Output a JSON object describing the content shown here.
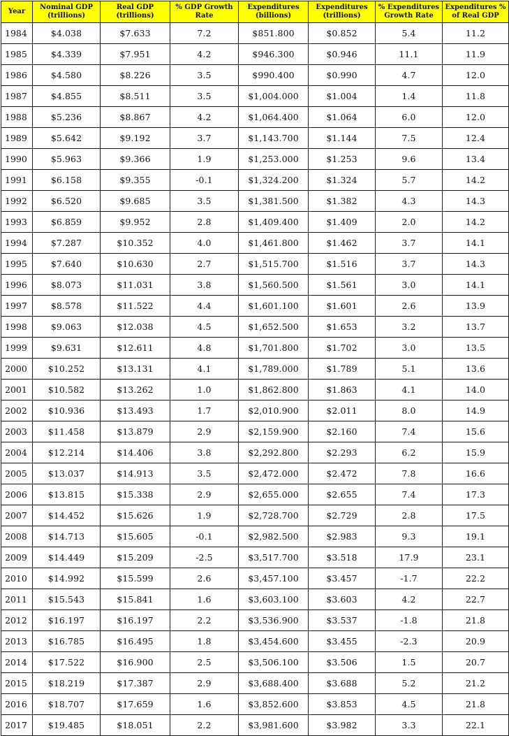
{
  "table": {
    "headers": [
      "Year",
      "Nominal GDP (trillions)",
      "Real GDP (trillions)",
      "% GDP Growth Rate",
      "Expenditures (billions)",
      "Expenditures (trillions)",
      "% Expenditures Growth Rate",
      "Expenditures % of Real GDP"
    ],
    "rows": [
      [
        "1984",
        "$4.038",
        "$7.633",
        "7.2",
        "$851.800",
        "$0.852",
        "5.4",
        "11.2"
      ],
      [
        "1985",
        "$4.339",
        "$7.951",
        "4.2",
        "$946.300",
        "$0.946",
        "11.1",
        "11.9"
      ],
      [
        "1986",
        "$4.580",
        "$8.226",
        "3.5",
        "$990.400",
        "$0.990",
        "4.7",
        "12.0"
      ],
      [
        "1987",
        "$4.855",
        "$8.511",
        "3.5",
        "$1,004.000",
        "$1.004",
        "1.4",
        "11.8"
      ],
      [
        "1988",
        "$5.236",
        "$8.867",
        "4.2",
        "$1,064.400",
        "$1.064",
        "6.0",
        "12.0"
      ],
      [
        "1989",
        "$5.642",
        "$9.192",
        "3.7",
        "$1,143.700",
        "$1.144",
        "7.5",
        "12.4"
      ],
      [
        "1990",
        "$5.963",
        "$9.366",
        "1.9",
        "$1,253.000",
        "$1.253",
        "9.6",
        "13.4"
      ],
      [
        "1991",
        "$6.158",
        "$9.355",
        "-0.1",
        "$1,324.200",
        "$1.324",
        "5.7",
        "14.2"
      ],
      [
        "1992",
        "$6.520",
        "$9.685",
        "3.5",
        "$1,381.500",
        "$1.382",
        "4.3",
        "14.3"
      ],
      [
        "1993",
        "$6.859",
        "$9.952",
        "2.8",
        "$1,409.400",
        "$1.409",
        "2.0",
        "14.2"
      ],
      [
        "1994",
        "$7.287",
        "$10.352",
        "4.0",
        "$1,461.800",
        "$1.462",
        "3.7",
        "14.1"
      ],
      [
        "1995",
        "$7.640",
        "$10.630",
        "2.7",
        "$1,515.700",
        "$1.516",
        "3.7",
        "14.3"
      ],
      [
        "1996",
        "$8.073",
        "$11.031",
        "3.8",
        "$1,560.500",
        "$1.561",
        "3.0",
        "14.1"
      ],
      [
        "1997",
        "$8.578",
        "$11.522",
        "4.4",
        "$1,601.100",
        "$1.601",
        "2.6",
        "13.9"
      ],
      [
        "1998",
        "$9.063",
        "$12.038",
        "4.5",
        "$1,652.500",
        "$1.653",
        "3.2",
        "13.7"
      ],
      [
        "1999",
        "$9.631",
        "$12.611",
        "4.8",
        "$1,701.800",
        "$1.702",
        "3.0",
        "13.5"
      ],
      [
        "2000",
        "$10.252",
        "$13.131",
        "4.1",
        "$1,789.000",
        "$1.789",
        "5.1",
        "13.6"
      ],
      [
        "2001",
        "$10.582",
        "$13.262",
        "1.0",
        "$1,862.800",
        "$1.863",
        "4.1",
        "14.0"
      ],
      [
        "2002",
        "$10.936",
        "$13.493",
        "1.7",
        "$2,010.900",
        "$2.011",
        "8.0",
        "14.9"
      ],
      [
        "2003",
        "$11.458",
        "$13.879",
        "2.9",
        "$2,159.900",
        "$2.160",
        "7.4",
        "15.6"
      ],
      [
        "2004",
        "$12.214",
        "$14.406",
        "3.8",
        "$2,292.800",
        "$2.293",
        "6.2",
        "15.9"
      ],
      [
        "2005",
        "$13.037",
        "$14.913",
        "3.5",
        "$2,472.000",
        "$2.472",
        "7.8",
        "16.6"
      ],
      [
        "2006",
        "$13.815",
        "$15.338",
        "2.9",
        "$2,655.000",
        "$2.655",
        "7.4",
        "17.3"
      ],
      [
        "2007",
        "$14.452",
        "$15.626",
        "1.9",
        "$2,728.700",
        "$2.729",
        "2.8",
        "17.5"
      ],
      [
        "2008",
        "$14.713",
        "$15.605",
        "-0.1",
        "$2,982.500",
        "$2.983",
        "9.3",
        "19.1"
      ],
      [
        "2009",
        "$14.449",
        "$15.209",
        "-2.5",
        "$3,517.700",
        "$3.518",
        "17.9",
        "23.1"
      ],
      [
        "2010",
        "$14.992",
        "$15.599",
        "2.6",
        "$3,457.100",
        "$3.457",
        "-1.7",
        "22.2"
      ],
      [
        "2011",
        "$15.543",
        "$15.841",
        "1.6",
        "$3,603.100",
        "$3.603",
        "4.2",
        "22.7"
      ],
      [
        "2012",
        "$16.197",
        "$16.197",
        "2.2",
        "$3,536.900",
        "$3.537",
        "-1.8",
        "21.8"
      ],
      [
        "2013",
        "$16.785",
        "$16.495",
        "1.8",
        "$3,454.600",
        "$3.455",
        "-2.3",
        "20.9"
      ],
      [
        "2014",
        "$17.522",
        "$16.900",
        "2.5",
        "$3,506.100",
        "$3.506",
        "1.5",
        "20.7"
      ],
      [
        "2015",
        "$18.219",
        "$17.387",
        "2.9",
        "$3,688.400",
        "$3.688",
        "5.2",
        "21.2"
      ],
      [
        "2016",
        "$18.707",
        "$17.659",
        "1.6",
        "$3,852.600",
        "$3.853",
        "4.5",
        "21.8"
      ],
      [
        "2017",
        "$19.485",
        "$18.051",
        "2.2",
        "$3,981.600",
        "$3.982",
        "3.3",
        "22.1"
      ]
    ]
  }
}
